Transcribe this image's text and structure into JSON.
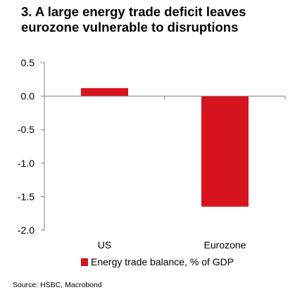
{
  "chart_data": {
    "type": "bar",
    "title": "3. A large energy trade deficit leaves eurozone vulnerable to disruptions",
    "categories": [
      "US",
      "Eurozone"
    ],
    "series": [
      {
        "name": "Energy trade balance, % of GDP",
        "values": [
          0.12,
          -1.65
        ],
        "color": "#d7141e"
      }
    ],
    "ylim": [
      -2.0,
      0.5
    ],
    "yticks": [
      0.5,
      0.0,
      -0.5,
      -1.0,
      -1.5,
      -2.0
    ],
    "ytick_labels": [
      "0.5",
      "0.0",
      "-0.5",
      "-1.0",
      "-1.5",
      "-2.0"
    ],
    "xlabel": "",
    "ylabel": "",
    "grid": false,
    "legend_position": "bottom"
  },
  "source": "Source: HSBC, Macrobond",
  "colors": {
    "axis": "#808080",
    "text": "#000000"
  }
}
